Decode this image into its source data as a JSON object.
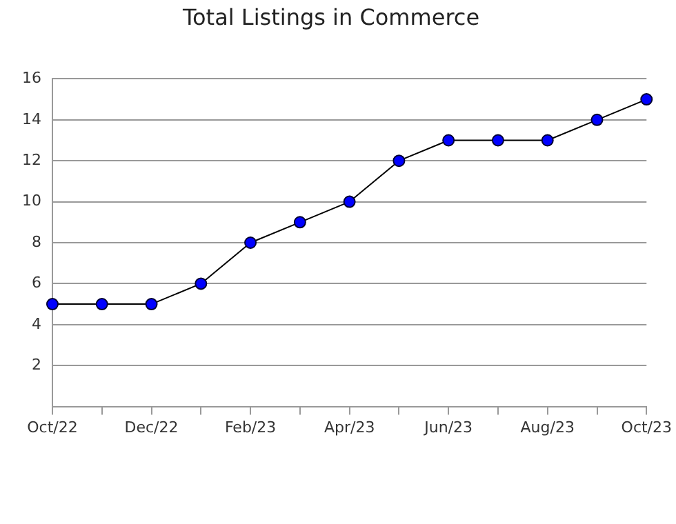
{
  "chart_data": {
    "type": "line",
    "title": "Total Listings in Commerce",
    "categories": [
      "Oct/22",
      null,
      "Dec/22",
      null,
      "Feb/23",
      null,
      "Apr/23",
      null,
      "Jun/23",
      null,
      "Aug/23",
      null,
      "Oct/23"
    ],
    "series": [
      {
        "color": "#0000ff",
        "values": [
          5,
          5,
          5,
          6,
          8,
          9,
          10,
          12,
          13,
          13,
          13,
          14,
          15
        ]
      }
    ],
    "ylim": [
      0,
      16
    ],
    "yticks": [
      2,
      4,
      6,
      8,
      10,
      12,
      14,
      16
    ],
    "grid": "y",
    "legend": false,
    "marker": "circle",
    "line_style": "solid"
  }
}
